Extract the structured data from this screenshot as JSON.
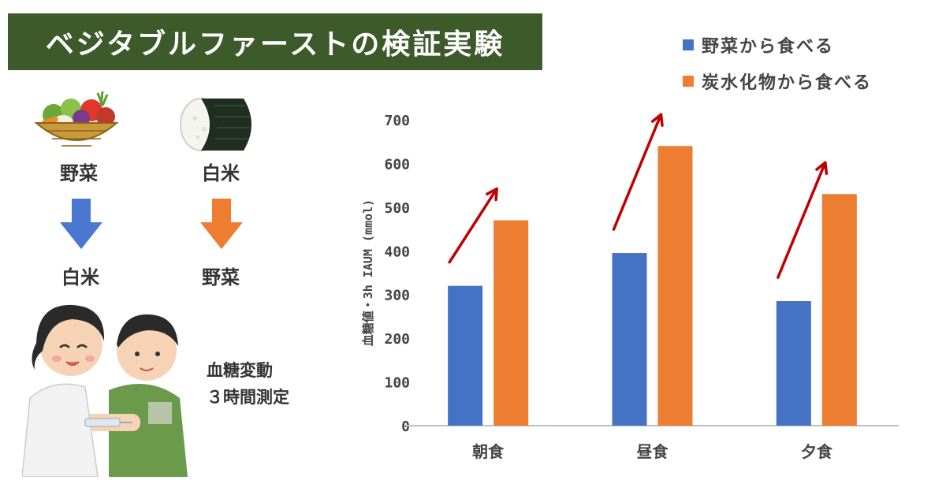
{
  "title": "ベジタブルファーストの検証実験",
  "left_panel": {
    "col1_top": "野菜",
    "col1_bottom": "白米",
    "col2_top": "白米",
    "col2_bottom": "野菜",
    "note_line1": "血糖変動",
    "note_line2": "３時間測定",
    "icons": [
      "vegetable-basket-icon",
      "rice-ball-icon",
      "arrow-down-icon",
      "nurse-patient-illustration"
    ]
  },
  "colors": {
    "banner": "#3d5a2a",
    "series_vegetable_first": "#4472c4",
    "series_carb_first": "#ed7d31",
    "trend_arrow": "#c00000",
    "arrow_blue": "#4a78d0",
    "arrow_orange": "#ee7d31"
  },
  "chart_data": {
    "type": "bar",
    "title": "",
    "xlabel": "",
    "ylabel": "血糖値・3h IAUM (mmol)",
    "ylim": [
      0,
      700
    ],
    "yticks": [
      "0",
      "100",
      "200",
      "300",
      "400",
      "500",
      "600",
      "700"
    ],
    "grid": false,
    "legend_position": "top-right",
    "categories": [
      "朝食",
      "昼食",
      "夕食"
    ],
    "series": [
      {
        "name": "野菜から食べる",
        "values": [
          320,
          395,
          285
        ]
      },
      {
        "name": "炭水化物から食べる",
        "values": [
          470,
          640,
          530
        ]
      }
    ]
  }
}
